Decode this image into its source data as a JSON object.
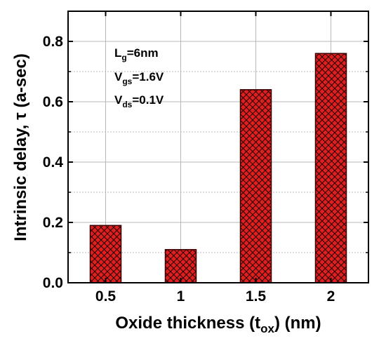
{
  "chart_data": {
    "type": "bar",
    "categories": [
      "0.5",
      "1",
      "1.5",
      "2"
    ],
    "x": [
      0.5,
      1,
      1.5,
      2
    ],
    "values": [
      0.19,
      0.11,
      0.64,
      0.76
    ],
    "xlabel": {
      "main": "Oxide thickness (t",
      "sub": "ox",
      "tail": ") (nm)"
    },
    "ylabel": "Intrinsic delay, τ (a-sec)",
    "ylim": [
      0,
      0.9
    ],
    "yticks": [
      0.0,
      0.2,
      0.4,
      0.6,
      0.8
    ],
    "ytick_labels": [
      "0.0",
      "0.2",
      "0.4",
      "0.6",
      "0.8"
    ],
    "grid": true,
    "annotations": [
      {
        "main": "L",
        "sub": "g",
        "rest": "=6nm"
      },
      {
        "main": "V",
        "sub": "gs",
        "rest": "=1.6V"
      },
      {
        "main": "V",
        "sub": "ds",
        "rest": "=0.1V"
      }
    ],
    "colors": {
      "bar_fill": "#e02020",
      "bar_edge": "#3a0000",
      "hatch": "#2a0000",
      "grid": "#b8b8b8"
    }
  }
}
